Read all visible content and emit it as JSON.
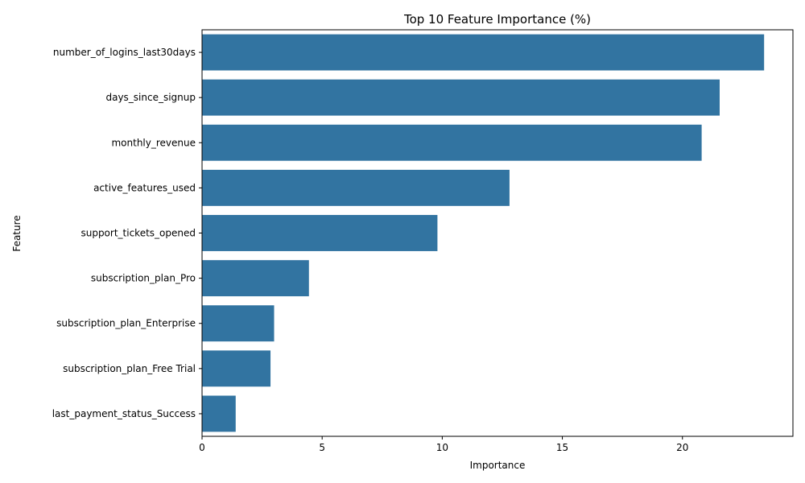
{
  "chart_data": {
    "type": "bar",
    "orientation": "horizontal",
    "title": "Top 10 Feature Importance (%)",
    "xlabel": "Importance",
    "ylabel": "Feature",
    "categories": [
      "number_of_logins_last30days",
      "days_since_signup",
      "monthly_revenue",
      "active_features_used",
      "support_tickets_opened",
      "subscription_plan_Pro",
      "subscription_plan_Enterprise",
      "subscription_plan_Free Trial",
      "last_payment_status_Success"
    ],
    "values": [
      23.4,
      21.55,
      20.8,
      12.8,
      9.8,
      4.45,
      3.0,
      2.85,
      1.4
    ],
    "xlim": [
      0,
      24.6
    ],
    "xticks": [
      0,
      5,
      10,
      15,
      20
    ],
    "grid": false,
    "legend": "none",
    "bar_color": "#3274a1"
  }
}
